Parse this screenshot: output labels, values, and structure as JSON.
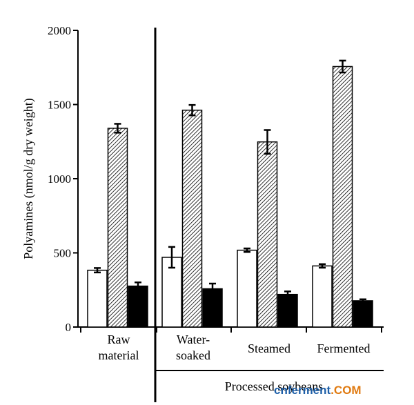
{
  "chart_data": {
    "type": "bar",
    "ylabel": "Polyamines (nmol/g dry weight)",
    "ylim": [
      0,
      2000
    ],
    "yticks": [
      0,
      500,
      1000,
      1500,
      2000
    ],
    "grid": false,
    "legend": "none",
    "categories": [
      {
        "lines": [
          "Raw",
          "material"
        ]
      },
      {
        "lines": [
          "Water-",
          "soaked"
        ]
      },
      {
        "lines": [
          "Steamed"
        ]
      },
      {
        "lines": [
          "Fermented"
        ]
      }
    ],
    "group_label": "Processed soybeans",
    "series": [
      {
        "style": "white",
        "values": [
          383,
          470,
          518,
          412
        ],
        "errors": [
          15,
          70,
          12,
          12
        ]
      },
      {
        "style": "hatched",
        "values": [
          1340,
          1462,
          1248,
          1756
        ],
        "errors": [
          30,
          35,
          80,
          40
        ]
      },
      {
        "style": "black",
        "values": [
          276,
          258,
          220,
          177
        ],
        "errors": [
          25,
          35,
          20,
          10
        ]
      }
    ]
  },
  "watermark": {
    "part1": "cnferment",
    "part2": ".COM"
  },
  "colors": {
    "bar_white": "#ffffff",
    "bar_black": "#000000",
    "hatch": "#000000",
    "watermark_blue": "#1e5fa8",
    "watermark_orange": "#e07a10"
  }
}
